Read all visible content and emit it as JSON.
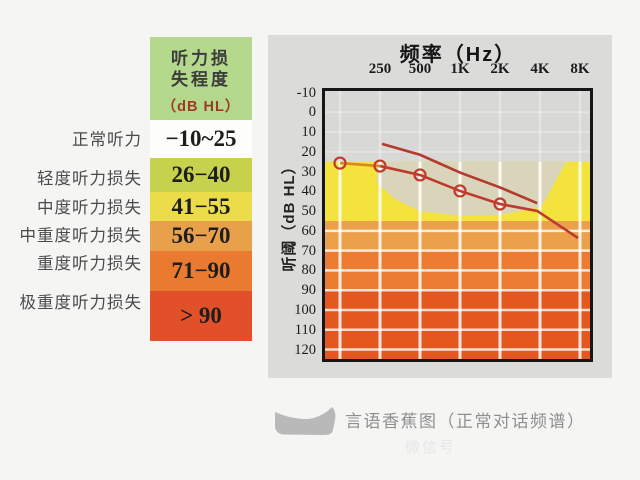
{
  "page": {
    "bg": "#f5f5f4"
  },
  "severity_table": {
    "header": {
      "line1": "听力损",
      "line2": "失程度",
      "unit": "（dB HL）",
      "bg": "#b5d98c",
      "unit_color": "#9e3a28"
    },
    "rows": [
      {
        "label": "正常听力",
        "range": "−10~25",
        "bg": "#fdfdfc"
      },
      {
        "label": "轻度听力损失",
        "range": "26−40",
        "bg": "#c6d24b"
      },
      {
        "label": "中度听力损失",
        "range": "41−55",
        "bg": "#eadd49"
      },
      {
        "label": "中重度听力损失",
        "range": "56−70",
        "bg": "#e8a04b"
      },
      {
        "label": "重度听力损失",
        "range": "71−90",
        "bg": "#eb7a31"
      },
      {
        "label": "极重度听力损失",
        "range": "> 90",
        "bg": "#e2502a"
      }
    ]
  },
  "chart_data": {
    "type": "line",
    "title": "频率（Hz）",
    "ylabel": "听阈（dB HL）",
    "x_tick_labels": [
      "250",
      "500",
      "1K",
      "2K",
      "4K",
      "8K"
    ],
    "x_gridline_count": 7,
    "yticks": [
      -10,
      0,
      10,
      20,
      30,
      40,
      50,
      60,
      70,
      80,
      90,
      100,
      110,
      120
    ],
    "y_increases_downward": true,
    "ylim": [
      -10,
      120
    ],
    "bands": [
      {
        "label": "normal",
        "from_db": -15,
        "to_db": 25,
        "color": "#d8d8d6"
      },
      {
        "label": "mild-moderate",
        "from_db": 25,
        "to_db": 55,
        "color": "#f3e33c"
      },
      {
        "label": "moderately-severe",
        "from_db": 55,
        "to_db": 70,
        "color": "#eca04a"
      },
      {
        "label": "severe",
        "from_db": 70,
        "to_db": 90,
        "color": "#ec7c31"
      },
      {
        "label": "profound",
        "from_db": 90,
        "to_db": 140,
        "color": "#e4571e"
      }
    ],
    "speech_banana": {
      "color": "#d7d3c6",
      "opacity": 0.92,
      "points": [
        [
          0.93,
          25
        ],
        [
          5.65,
          25
        ],
        [
          5.03,
          48
        ],
        [
          4,
          52
        ],
        [
          3,
          52.5
        ],
        [
          2,
          50
        ],
        [
          1.38,
          44
        ],
        [
          0.93,
          36
        ]
      ]
    },
    "series": [
      {
        "name": "threshold-curve-circles",
        "color": "#bf3a2b",
        "marker": "circle",
        "marker_count": 5,
        "first_segment_color": "#dd861e",
        "points": [
          [
            0,
            25.7
          ],
          [
            1,
            27.2
          ],
          [
            2,
            31.7
          ],
          [
            3,
            39.8
          ],
          [
            4,
            46.4
          ],
          [
            4.93,
            49.9
          ],
          [
            5.95,
            63.6
          ]
        ]
      },
      {
        "name": "upper-curve",
        "color": "#b43a2e",
        "marker": "none",
        "points": [
          [
            1.05,
            16
          ],
          [
            2,
            21.5
          ],
          [
            3,
            30.5
          ],
          [
            4,
            38
          ],
          [
            4.93,
            46
          ]
        ]
      }
    ]
  },
  "legend": {
    "text": "言语香蕉图（正常对话频谱）",
    "swatch_color": "#b9b9b9"
  },
  "watermark": "微信号"
}
